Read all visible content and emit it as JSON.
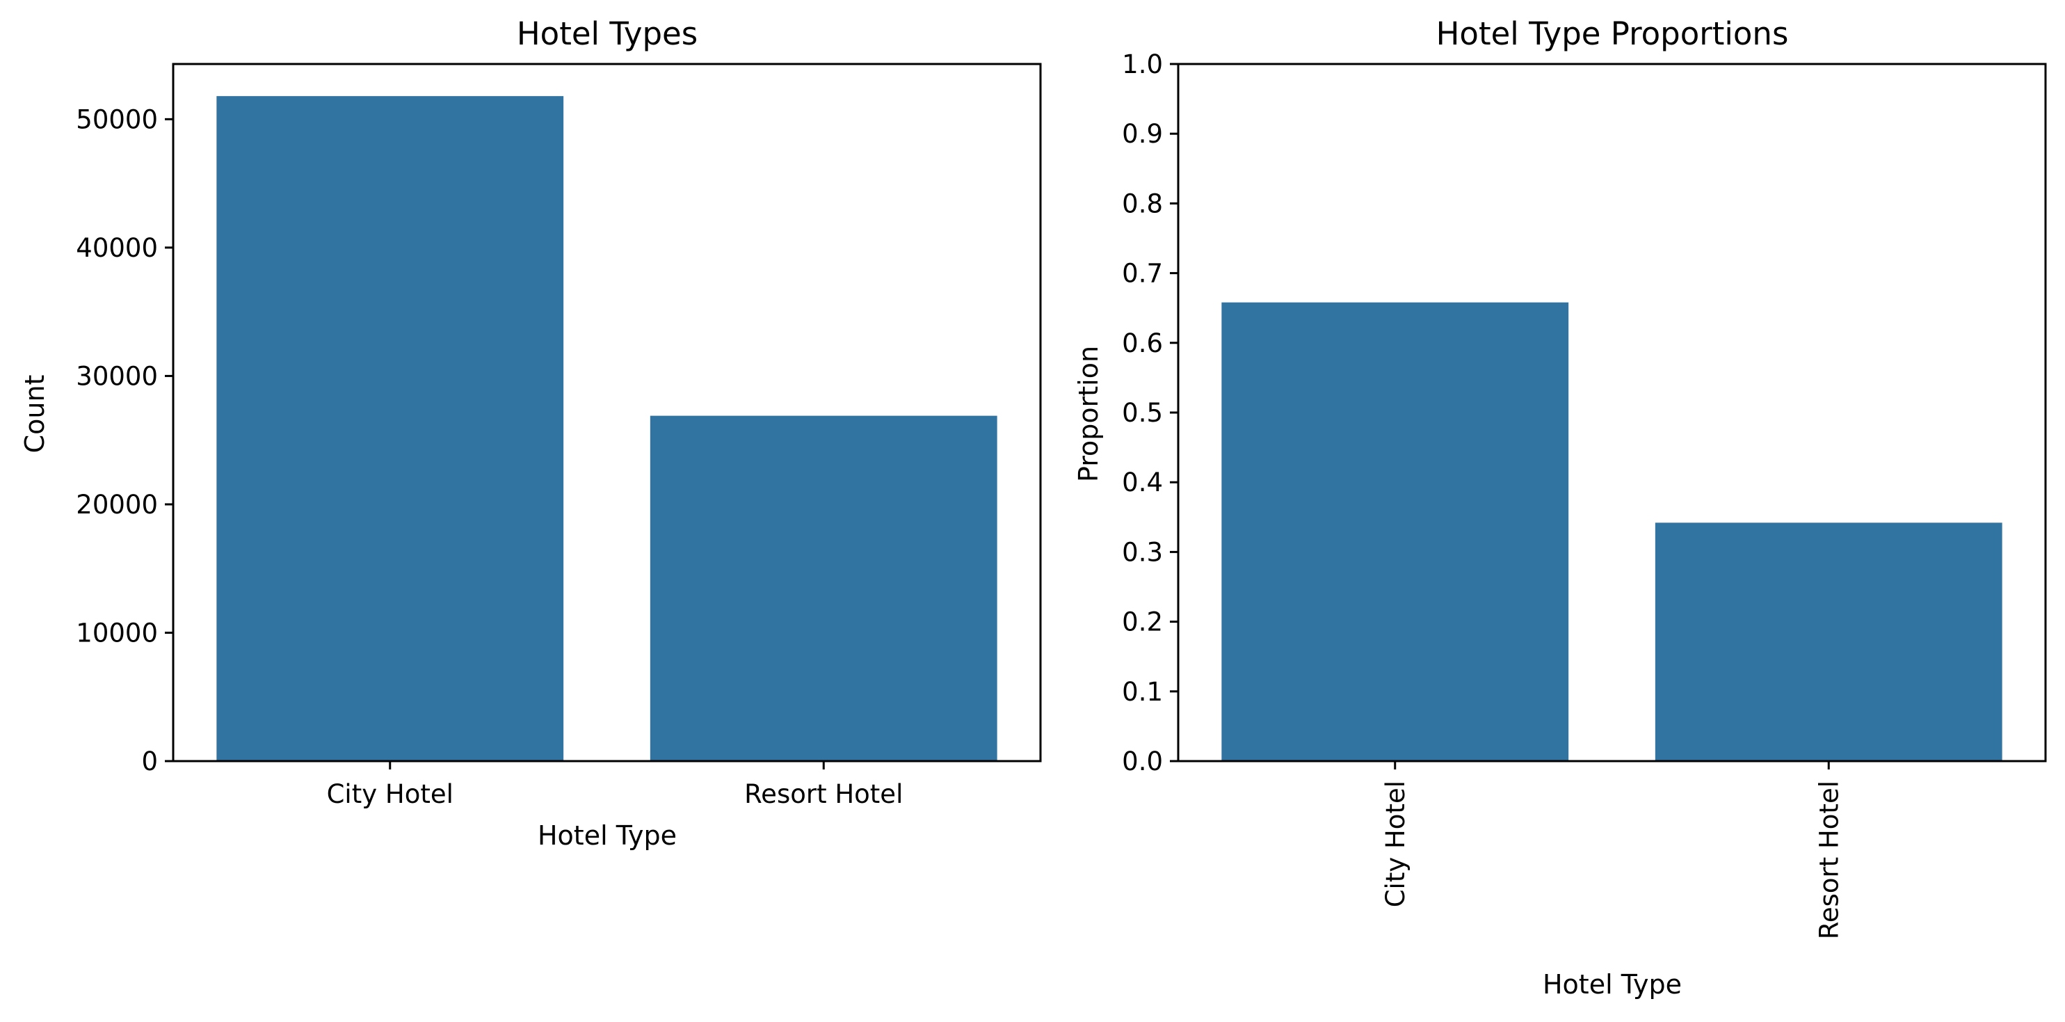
{
  "chart_data": [
    {
      "type": "bar",
      "title": "Hotel Types",
      "xlabel": "Hotel Type",
      "ylabel": "Count",
      "categories": [
        "City Hotel",
        "Resort Hotel"
      ],
      "values": [
        51800,
        26900
      ],
      "ylim": [
        0,
        54300
      ],
      "yticks": [
        0,
        10000,
        20000,
        30000,
        40000,
        50000
      ],
      "ytick_labels": [
        "0",
        "10000",
        "20000",
        "30000",
        "40000",
        "50000"
      ],
      "xtick_rotation": 0,
      "grid": false,
      "bar_color": "#3274a1"
    },
    {
      "type": "bar",
      "title": "Hotel Type Proportions",
      "xlabel": "Hotel Type",
      "ylabel": "Proportion",
      "categories": [
        "City Hotel",
        "Resort Hotel"
      ],
      "values": [
        0.658,
        0.342
      ],
      "ylim": [
        0,
        1.0
      ],
      "yticks": [
        0.0,
        0.1,
        0.2,
        0.3,
        0.4,
        0.5,
        0.6,
        0.7,
        0.8,
        0.9,
        1.0
      ],
      "ytick_labels": [
        "0.0",
        "0.1",
        "0.2",
        "0.3",
        "0.4",
        "0.5",
        "0.6",
        "0.7",
        "0.8",
        "0.9",
        "1.0"
      ],
      "xtick_rotation": 90,
      "grid": false,
      "bar_color": "#3274a1"
    }
  ]
}
